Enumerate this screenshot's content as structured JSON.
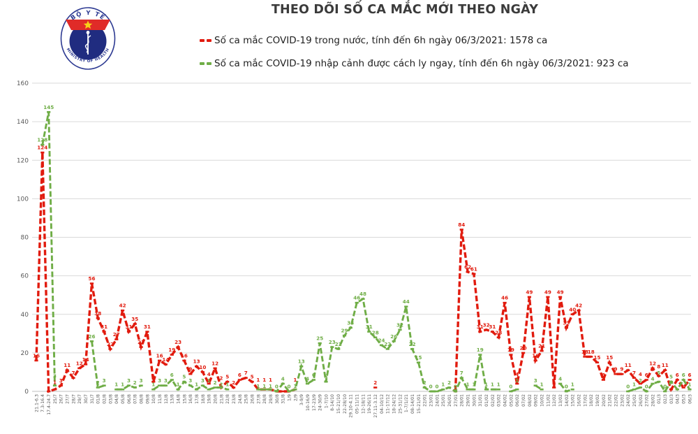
{
  "header": {
    "title": "THEO DÕI SỐ CA MẮC MỚI THEO NGÀY",
    "logo": {
      "top_text": "BỘ Y TẾ",
      "bottom_text": "MINISTRY OF HEALTH"
    },
    "legend": [
      {
        "label": "Số ca mắc COVID-19 trong nước, tính đến 6h ngày 06/3/2021: 1578 ca",
        "color": "#e11b0e"
      },
      {
        "label": "Số ca mắc COVID-19 nhập cảnh được cách ly ngay, tính đến 6h ngày 06/3/2021: 923 ca",
        "color": "#6fad46"
      }
    ]
  },
  "chart_data": {
    "type": "line",
    "title": "THEO DÕI SỐ CA MẮC MỚI THEO NGÀY",
    "xlabel": "",
    "ylabel": "",
    "ylim": [
      0,
      160
    ],
    "yticks": [
      0,
      20,
      40,
      60,
      80,
      100,
      120,
      140,
      160
    ],
    "grid": true,
    "legend_position": "top",
    "colors": {
      "domestic": "#e11b0e",
      "imported": "#6fad46",
      "gridline": "#d9d9d9",
      "axis_text": "#595959"
    },
    "categories": [
      "21.1-6.3",
      "7.3-16.4",
      "17.4-24.7",
      "25/7",
      "26/7",
      "27/7",
      "28/7",
      "29/7",
      "30/7",
      "31/7",
      "01/8",
      "02/8",
      "03/8",
      "04/8",
      "05/8",
      "06/8",
      "07/8",
      "08/8",
      "09/8",
      "10/8",
      "11/8",
      "12/8",
      "13/8",
      "14/8",
      "15/8",
      "16/8",
      "17/8",
      "18/8",
      "19/8",
      "20/8",
      "21/8",
      "22/8",
      "23/8",
      "24/8",
      "25/8",
      "26/8",
      "27/8",
      "28/8",
      "29/8",
      "30/8",
      "31/8",
      "1/9",
      "2/9",
      "3-9/9",
      "10-16/9",
      "17-23/9",
      "24-30/9",
      "1-7/10",
      "8-14/10",
      "15-21/10",
      "22-28/10",
      "29.10-4.11",
      "05-11/11",
      "12-18/11",
      "19-26/11",
      "27.11-3.12",
      "04-10/12",
      "11-17/12",
      "18-24/12",
      "25-31/12",
      "1-7/1/21",
      "08-14/01",
      "15-21/01",
      "22/01",
      "23/01",
      "24/01",
      "25/01",
      "26/01",
      "27/01",
      "28/01",
      "29/01",
      "30/01",
      "31/01",
      "01/02",
      "02/02",
      "03/02",
      "04/02",
      "05/02",
      "06/02",
      "07/02",
      "08/02",
      "09/02",
      "10/02",
      "11/02",
      "12/02",
      "13/02",
      "14/02",
      "15/02",
      "16/02",
      "17/02",
      "18/02",
      "19/02",
      "20/02",
      "21/02",
      "22/02",
      "23/02",
      "24/02",
      "25/02",
      "26/02",
      "27/02",
      "28/02",
      "01/3",
      "02/3",
      "03/3",
      "04/3",
      "05/3",
      "06/3"
    ],
    "series": [
      {
        "name": "Số ca mắc COVID-19 trong nước",
        "color": "#e11b0e",
        "values": [
          16,
          124,
          0,
          1,
          3,
          11,
          7,
          12,
          14,
          56,
          38,
          31,
          22,
          27,
          42,
          31,
          35,
          23,
          31,
          5,
          16,
          14,
          19,
          23,
          16,
          9,
          13,
          10,
          4,
          12,
          2,
          5,
          2,
          6,
          7,
          5,
          1,
          1,
          1,
          0,
          0,
          0,
          1,
          null,
          null,
          null,
          null,
          null,
          null,
          null,
          null,
          null,
          null,
          null,
          null,
          2,
          null,
          null,
          null,
          null,
          null,
          null,
          null,
          null,
          null,
          null,
          null,
          null,
          0,
          84,
          62,
          61,
          31,
          32,
          31,
          28,
          46,
          19,
          4,
          20,
          49,
          16,
          21,
          49,
          2,
          49,
          33,
          40,
          42,
          18,
          18,
          15,
          6,
          15,
          9,
          9,
          11,
          7,
          4,
          6,
          12,
          8,
          11,
          1,
          6,
          2,
          6
        ],
        "labels": [
          "16",
          "124",
          "",
          "1",
          "3",
          "11",
          "7",
          "12",
          "14",
          "56",
          "38",
          "31",
          "22",
          "27",
          "42",
          "31",
          "35",
          "23",
          "31",
          "5",
          "16",
          "14",
          "19",
          "23",
          "16",
          "9",
          "13",
          "10",
          "4",
          "12",
          "2",
          "5",
          "2",
          "6",
          "7",
          "5",
          "1",
          "1",
          "1",
          "",
          "",
          "",
          "1",
          "",
          "",
          "",
          "",
          "",
          "",
          "",
          "",
          "",
          "",
          "",
          "",
          "2",
          "",
          "",
          "",
          "",
          "",
          "",
          "",
          "",
          "",
          "",
          "",
          "",
          "",
          "84",
          "62",
          "61",
          "31",
          "32",
          "31",
          "28",
          "46",
          "19",
          "4",
          "20",
          "49",
          "16",
          "21",
          "49",
          "2",
          "49",
          "33",
          "40",
          "42",
          "18",
          "18",
          "15",
          "6",
          "15",
          "9",
          "9",
          "11",
          "7",
          "4",
          "6",
          "12",
          "8",
          "11",
          "",
          "6",
          "",
          "6"
        ]
      },
      {
        "name": "Số ca mắc COVID-19 nhập cảnh được cách ly ngay",
        "color": "#6fad46",
        "values": [
          null,
          128,
          145,
          3,
          null,
          null,
          null,
          null,
          null,
          26,
          2,
          3,
          null,
          1,
          1,
          3,
          2,
          3,
          null,
          1,
          3,
          3,
          6,
          1,
          5,
          3,
          1,
          3,
          1,
          2,
          2,
          1,
          null,
          null,
          null,
          null,
          1,
          1,
          1,
          0,
          4,
          0,
          1,
          13,
          4,
          6,
          25,
          5,
          23,
          22,
          29,
          33,
          46,
          48,
          31,
          28,
          24,
          22,
          26,
          32,
          44,
          22,
          15,
          2,
          0,
          0,
          1,
          2,
          0,
          7,
          1,
          1,
          19,
          1,
          1,
          1,
          null,
          0,
          1,
          null,
          null,
          3,
          1,
          null,
          null,
          4,
          0,
          1,
          null,
          null,
          null,
          null,
          null,
          null,
          null,
          null,
          0,
          1,
          2,
          0,
          4,
          5,
          0,
          5,
          1,
          6,
          1
        ],
        "labels": [
          "",
          "128",
          "145",
          "3",
          "",
          "",
          "",
          "",
          "",
          "26",
          "2",
          "3",
          "",
          "1",
          "1",
          "3",
          "2",
          "3",
          "",
          "1",
          "3",
          "3",
          "6",
          "1",
          "5",
          "3",
          "1",
          "3",
          "1",
          "2",
          "2",
          "1",
          "",
          "",
          "",
          "",
          "1",
          "1",
          "1",
          "0",
          "4",
          "0",
          "1",
          "13",
          "4",
          "6",
          "25",
          "5",
          "23",
          "22",
          "29",
          "33",
          "46",
          "48",
          "31",
          "28",
          "24",
          "22",
          "26",
          "32",
          "44",
          "22",
          "15",
          "2",
          "0",
          "0",
          "1",
          "2",
          "0",
          "7",
          "1",
          "1",
          "19",
          "1",
          "1",
          "1",
          "",
          "0",
          "1",
          "",
          "",
          "3",
          "1",
          "",
          "",
          "4",
          "0",
          "1",
          "",
          "",
          "",
          "",
          "",
          "",
          "",
          "",
          "0",
          "1",
          "2",
          "0",
          "4",
          "5",
          "0",
          "5",
          "",
          "6",
          "1"
        ]
      }
    ]
  }
}
